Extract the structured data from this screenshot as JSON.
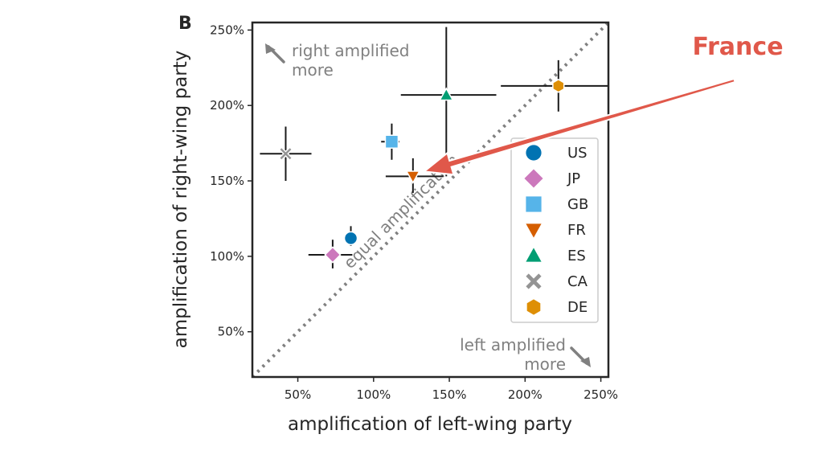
{
  "chart_data": {
    "type": "scatter",
    "panel_label": "B",
    "xlabel": "amplification of left-wing party",
    "ylabel": "amplification of right-wing party",
    "xlim": [
      20,
      255
    ],
    "ylim": [
      20,
      255
    ],
    "x_ticks": [
      {
        "value": 50,
        "label": "50%"
      },
      {
        "value": 100,
        "label": "100%"
      },
      {
        "value": 150,
        "label": "150%"
      },
      {
        "value": 200,
        "label": "200%"
      },
      {
        "value": 250,
        "label": "250%"
      }
    ],
    "y_ticks": [
      {
        "value": 50,
        "label": "50%"
      },
      {
        "value": 100,
        "label": "100%"
      },
      {
        "value": 150,
        "label": "150%"
      },
      {
        "value": 200,
        "label": "200%"
      },
      {
        "value": 250,
        "label": "250%"
      }
    ],
    "grid": false,
    "legend_position": "right",
    "series": [
      {
        "name": "US",
        "marker": "circle",
        "color": "#0173b2",
        "x": 85,
        "y": 112,
        "x_err": [
          82,
          88
        ],
        "y_err": [
          107,
          120
        ]
      },
      {
        "name": "JP",
        "marker": "diamond",
        "color": "#cc78bc",
        "x": 73,
        "y": 101,
        "x_err": [
          57,
          86
        ],
        "y_err": [
          92,
          111
        ]
      },
      {
        "name": "GB",
        "marker": "square",
        "color": "#56b4e9",
        "x": 112,
        "y": 176,
        "x_err": [
          105,
          117
        ],
        "y_err": [
          164,
          188
        ]
      },
      {
        "name": "FR",
        "marker": "triangle-down",
        "color": "#d55e00",
        "x": 126,
        "y": 153,
        "x_err": [
          108,
          146
        ],
        "y_err": [
          142,
          165
        ]
      },
      {
        "name": "ES",
        "marker": "triangle-up",
        "color": "#029e73",
        "x": 148,
        "y": 207,
        "x_err": [
          118,
          181
        ],
        "y_err": [
          153,
          252
        ]
      },
      {
        "name": "CA",
        "marker": "x",
        "color": "#949494",
        "x": 42,
        "y": 168,
        "x_err": [
          25,
          59
        ],
        "y_err": [
          150,
          186
        ]
      },
      {
        "name": "DE",
        "marker": "hexagon",
        "color": "#de8f05",
        "x": 222,
        "y": 213,
        "x_err": [
          184,
          255
        ],
        "y_err": [
          196,
          230
        ]
      }
    ],
    "diagonal_label": "equal amplification",
    "annotations": {
      "top_left": [
        "right amplified",
        "more"
      ],
      "bottom_right": [
        "left amplified",
        "more"
      ]
    },
    "callout": {
      "text": "France",
      "target": "FR",
      "color": "#e0584a"
    }
  }
}
